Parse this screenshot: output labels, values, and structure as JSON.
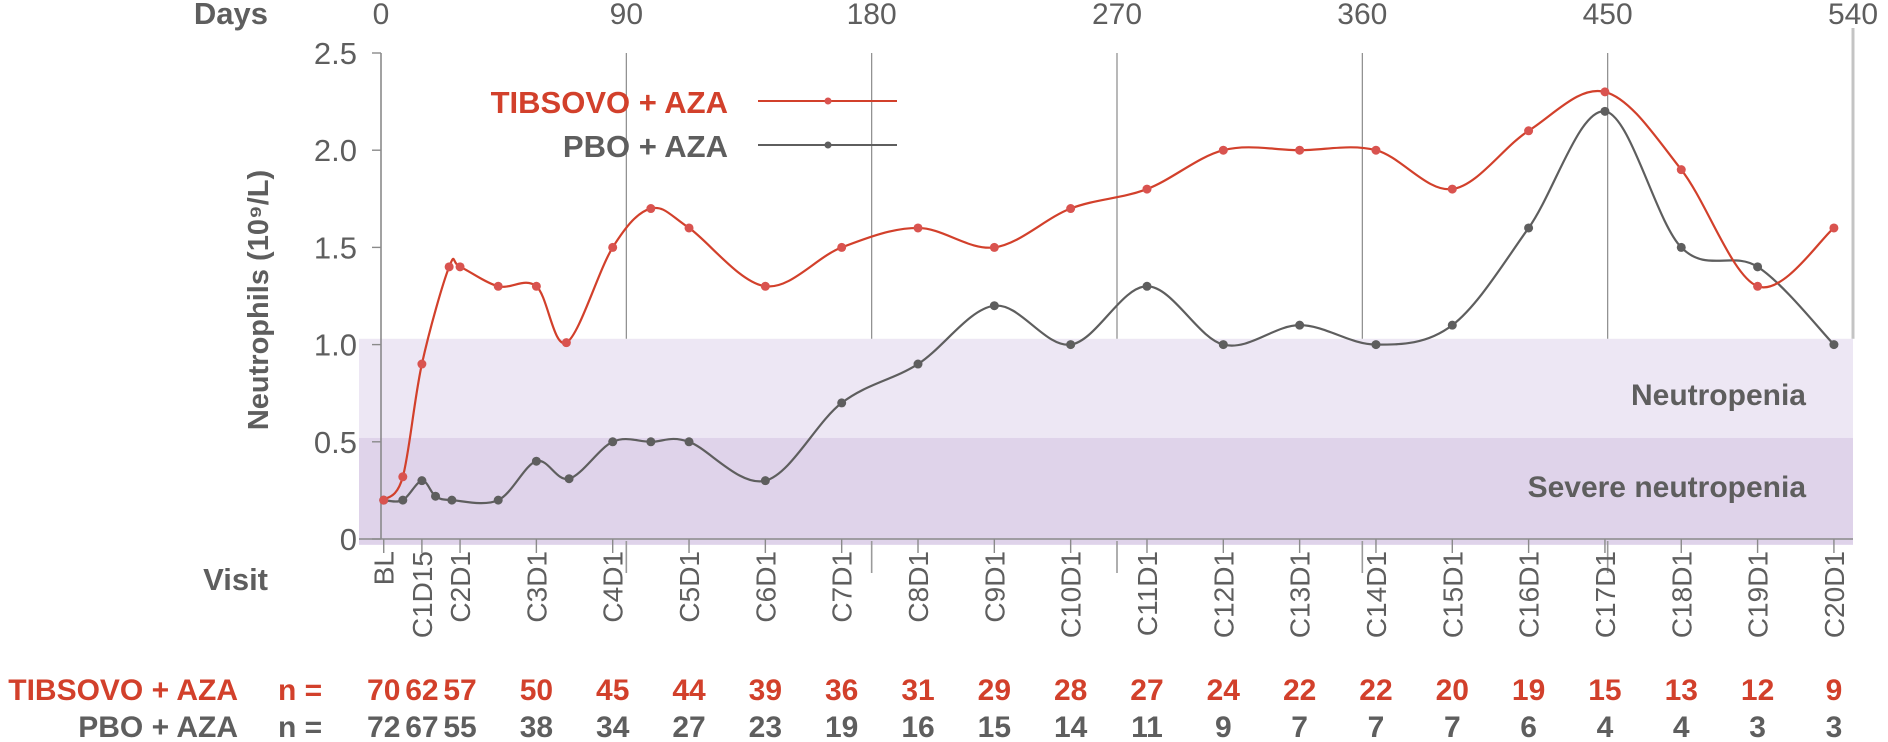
{
  "chart_data": {
    "type": "line",
    "xlabel_top": "Days",
    "xlabel_bottom": "Visit",
    "ylabel": "Neutrophils (10⁹/L)",
    "xlim": [
      0,
      540
    ],
    "ylim": [
      0,
      2.5
    ],
    "day_ticks": [
      "0",
      "90",
      "180",
      "270",
      "360",
      "450",
      "540"
    ],
    "day_tick_values": [
      0,
      90,
      180,
      270,
      360,
      450,
      540
    ],
    "y_ticks": [
      "0",
      "0.5",
      "1.0",
      "1.5",
      "2.0",
      "2.5"
    ],
    "y_tick_values": [
      0,
      0.5,
      1.0,
      1.5,
      2.0,
      2.5
    ],
    "visits": [
      {
        "label": "BL",
        "day": 1
      },
      {
        "label": "C1D15",
        "day": 15
      },
      {
        "label": "C2D1",
        "day": 29
      },
      {
        "label": "C3D1",
        "day": 57
      },
      {
        "label": "C4D1",
        "day": 85
      },
      {
        "label": "C5D1",
        "day": 113
      },
      {
        "label": "C6D1",
        "day": 141
      },
      {
        "label": "C7D1",
        "day": 169
      },
      {
        "label": "C8D1",
        "day": 197
      },
      {
        "label": "C9D1",
        "day": 225
      },
      {
        "label": "C10D1",
        "day": 253
      },
      {
        "label": "C11D1",
        "day": 281
      },
      {
        "label": "C12D1",
        "day": 309
      },
      {
        "label": "C13D1",
        "day": 337
      },
      {
        "label": "C14D1",
        "day": 365
      },
      {
        "label": "C15D1",
        "day": 393
      },
      {
        "label": "C16D1",
        "day": 421
      },
      {
        "label": "C17D1",
        "day": 449
      },
      {
        "label": "C18D1",
        "day": 477
      },
      {
        "label": "C19D1",
        "day": 505
      },
      {
        "label": "C20D1",
        "day": 533
      }
    ],
    "bands": [
      {
        "label": "Neutropenia",
        "from": 0.52,
        "to": 1.03,
        "color": "#ede7f4"
      },
      {
        "label": "Severe neutropenia",
        "from": -0.03,
        "to": 0.52,
        "color": "#dfd3ea"
      }
    ],
    "series": [
      {
        "name": "TIBSOVO + AZA",
        "color": "#d2402b",
        "marker_color": "#d9534f",
        "points": [
          [
            1,
            0.2
          ],
          [
            8,
            0.32
          ],
          [
            15,
            0.9
          ],
          [
            25,
            1.4
          ],
          [
            29,
            1.4
          ],
          [
            43,
            1.3
          ],
          [
            57,
            1.3
          ],
          [
            68,
            1.01
          ],
          [
            85,
            1.5
          ],
          [
            99,
            1.7
          ],
          [
            113,
            1.6
          ],
          [
            141,
            1.3
          ],
          [
            169,
            1.5
          ],
          [
            197,
            1.6
          ],
          [
            225,
            1.5
          ],
          [
            253,
            1.7
          ],
          [
            281,
            1.8
          ],
          [
            309,
            2.0
          ],
          [
            337,
            2.0
          ],
          [
            365,
            2.0
          ],
          [
            393,
            1.8
          ],
          [
            421,
            2.1
          ],
          [
            449,
            2.3
          ],
          [
            477,
            1.9
          ],
          [
            505,
            1.3
          ],
          [
            533,
            1.6
          ]
        ],
        "n": [
          "70",
          "62",
          "57",
          "50",
          "45",
          "44",
          "39",
          "36",
          "31",
          "29",
          "28",
          "27",
          "24",
          "22",
          "22",
          "20",
          "19",
          "15",
          "13",
          "12",
          "9"
        ]
      },
      {
        "name": "PBO + AZA",
        "color": "#5e5e5e",
        "marker_color": "#5e5e5e",
        "points": [
          [
            1,
            0.2
          ],
          [
            8,
            0.2
          ],
          [
            15,
            0.3
          ],
          [
            20,
            0.22
          ],
          [
            26,
            0.2
          ],
          [
            43,
            0.2
          ],
          [
            57,
            0.4
          ],
          [
            69,
            0.31
          ],
          [
            85,
            0.5
          ],
          [
            99,
            0.5
          ],
          [
            113,
            0.5
          ],
          [
            141,
            0.3
          ],
          [
            169,
            0.7
          ],
          [
            197,
            0.9
          ],
          [
            225,
            1.2
          ],
          [
            253,
            1.0
          ],
          [
            281,
            1.3
          ],
          [
            309,
            1.0
          ],
          [
            337,
            1.1
          ],
          [
            365,
            1.0
          ],
          [
            393,
            1.1
          ],
          [
            421,
            1.6
          ],
          [
            449,
            2.2
          ],
          [
            477,
            1.5
          ],
          [
            505,
            1.4
          ],
          [
            533,
            1.0
          ]
        ],
        "n": [
          "72",
          "67",
          "55",
          "38",
          "34",
          "27",
          "23",
          "19",
          "16",
          "15",
          "14",
          "11",
          "9",
          "7",
          "7",
          "7",
          "6",
          "4",
          "4",
          "3",
          "3"
        ]
      }
    ],
    "n_label": "n =",
    "legend": "top-left"
  }
}
